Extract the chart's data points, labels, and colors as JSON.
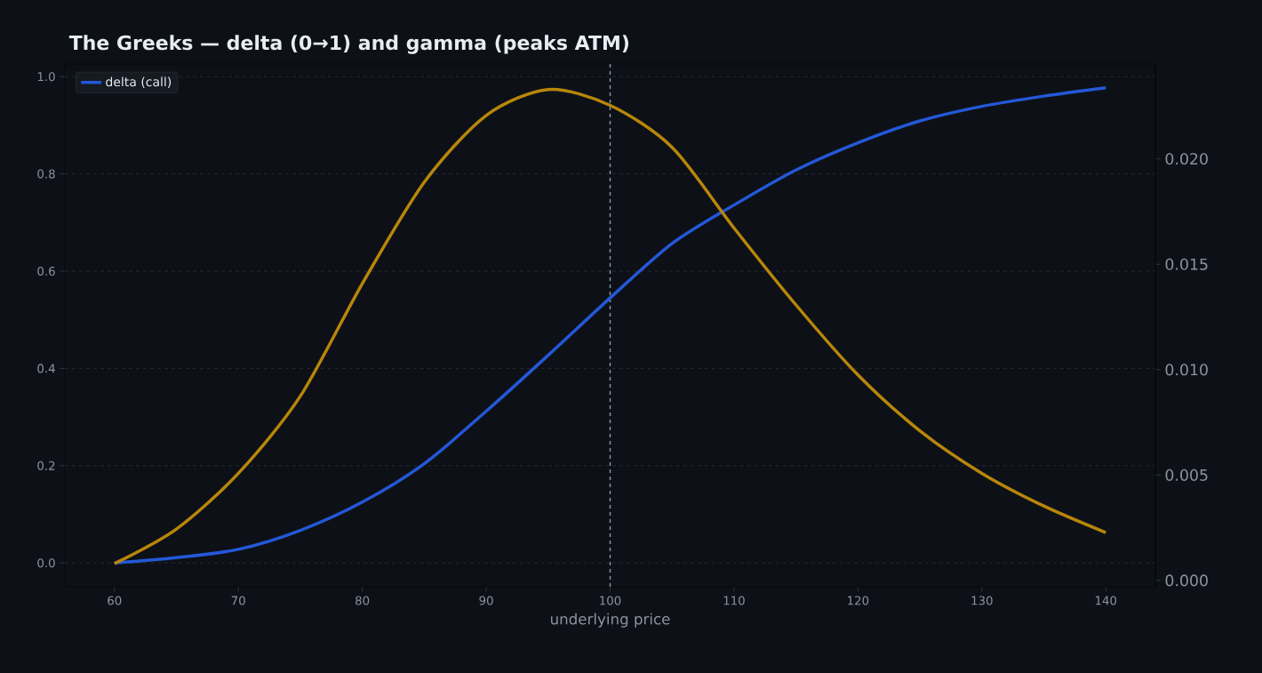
{
  "chart_data": {
    "type": "line",
    "title": "The Greeks — delta (0→1) and gamma (peaks ATM)",
    "xlabel": "underlying price",
    "x": [
      60,
      65,
      70,
      75,
      80,
      85,
      90,
      95,
      100,
      105,
      110,
      115,
      120,
      125,
      130,
      135,
      140
    ],
    "series": [
      {
        "name": "delta (call)",
        "color": "#2458d8",
        "values": [
          0.0,
          0.011,
          0.028,
          0.067,
          0.125,
          0.204,
          0.312,
          0.427,
          0.545,
          0.657,
          0.736,
          0.808,
          0.864,
          0.909,
          0.939,
          0.96,
          0.977
        ]
      },
      {
        "color": "#b8860b",
        "axis": "y2",
        "values": [
          0.0008,
          0.00244,
          0.00508,
          0.00874,
          0.01408,
          0.01889,
          0.02206,
          0.02329,
          0.02254,
          0.02055,
          0.01672,
          0.01307,
          0.00975,
          0.0071,
          0.00508,
          0.00353,
          0.00227
        ]
      }
    ],
    "xlim": [
      56,
      144
    ],
    "ylim": [
      -0.049,
      1.026
    ],
    "y2lim": [
      -0.0003,
      0.0245
    ],
    "xticks": [
      60,
      70,
      80,
      90,
      100,
      110,
      120,
      130,
      140
    ],
    "yticks": [
      {
        "value": 0,
        "label": "0.0"
      },
      0.2,
      0.4,
      0.6,
      0.8,
      {
        "value": 1,
        "label": "1.0"
      }
    ],
    "y2ticks": [
      {
        "value": 0,
        "label": "0.000"
      },
      {
        "value": 0.005,
        "label": "0.005"
      },
      {
        "value": 0.01,
        "label": "0.010"
      },
      {
        "value": 0.015,
        "label": "0.015"
      },
      {
        "value": 0.02,
        "label": "0.020"
      }
    ],
    "ref_lines": [
      {
        "axis": "x",
        "value": 100,
        "color": "#8b98a8",
        "line_style": "dashed"
      }
    ],
    "grid": "y",
    "legend": "top left",
    "line_style": "solid",
    "marker": "none"
  }
}
